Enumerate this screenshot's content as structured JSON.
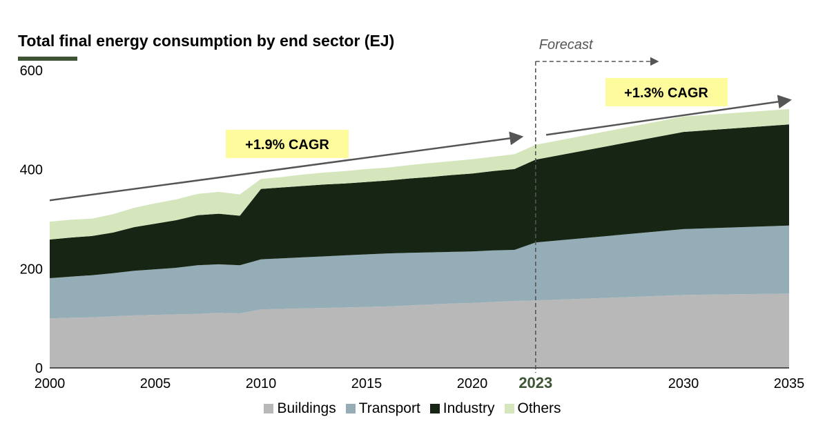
{
  "title": "Total final energy consumption by end sector (EJ)",
  "colors": {
    "buildings": "#b8b8b8",
    "transport": "#94adb6",
    "industry": "#172614",
    "others": "#d5e6bd",
    "title_underline": "#3d5435",
    "cagr_box": "#fefb9c",
    "arrow": "#555555",
    "highlight_year": "#3d5435"
  },
  "chart_data": {
    "type": "area",
    "stacked": true,
    "title": "Total final energy consumption by end sector (EJ)",
    "xlabel": "",
    "ylabel": "",
    "xlim": [
      2000,
      2035
    ],
    "ylim": [
      0,
      600
    ],
    "y_ticks": [
      0,
      200,
      400,
      600
    ],
    "x_ticks": [
      2000,
      2005,
      2010,
      2015,
      2020,
      2023,
      2030,
      2035
    ],
    "highlight_tick": 2023,
    "grid": false,
    "legend_position": "bottom-center",
    "x": [
      2000,
      2001,
      2002,
      2003,
      2004,
      2005,
      2006,
      2007,
      2008,
      2009,
      2010,
      2011,
      2012,
      2013,
      2014,
      2015,
      2016,
      2017,
      2018,
      2019,
      2020,
      2021,
      2022,
      2023,
      2030,
      2035
    ],
    "series": [
      {
        "name": "Buildings",
        "key": "buildings",
        "values": [
          100,
          101,
          102,
          104,
          106,
          107,
          108,
          109,
          111,
          110,
          118,
          119,
          120,
          121,
          122,
          123,
          124,
          126,
          128,
          130,
          131,
          133,
          135,
          136,
          147,
          150
        ]
      },
      {
        "name": "Transport",
        "key": "transport",
        "values": [
          81,
          83,
          85,
          87,
          90,
          92,
          94,
          98,
          98,
          97,
          101,
          102,
          103,
          104,
          105,
          106,
          107,
          106,
          105,
          104,
          104,
          104,
          103,
          117,
          133,
          137
        ]
      },
      {
        "name": "Industry",
        "key": "industry",
        "values": [
          78,
          79,
          79,
          82,
          88,
          92,
          96,
          101,
          102,
          100,
          142,
          143,
          144,
          145,
          145,
          146,
          147,
          150,
          152,
          155,
          157,
          160,
          163,
          167,
          196,
          204
        ]
      },
      {
        "name": "Others",
        "key": "others",
        "values": [
          36,
          36,
          35,
          37,
          39,
          41,
          42,
          43,
          44,
          43,
          20,
          21,
          23,
          24,
          25,
          26,
          26,
          27,
          28,
          28,
          29,
          29,
          30,
          30,
          31,
          31
        ]
      }
    ],
    "annotations": {
      "forecast_label": "Forecast",
      "forecast_start": 2023,
      "cagr_left": {
        "label": "+1.9% CAGR",
        "from": [
          2000,
          338
        ],
        "to": [
          2022.3,
          466
        ]
      },
      "cagr_right": {
        "label": "+1.3% CAGR",
        "from": [
          2023.5,
          470
        ],
        "to": [
          2035,
          540
        ]
      }
    }
  }
}
